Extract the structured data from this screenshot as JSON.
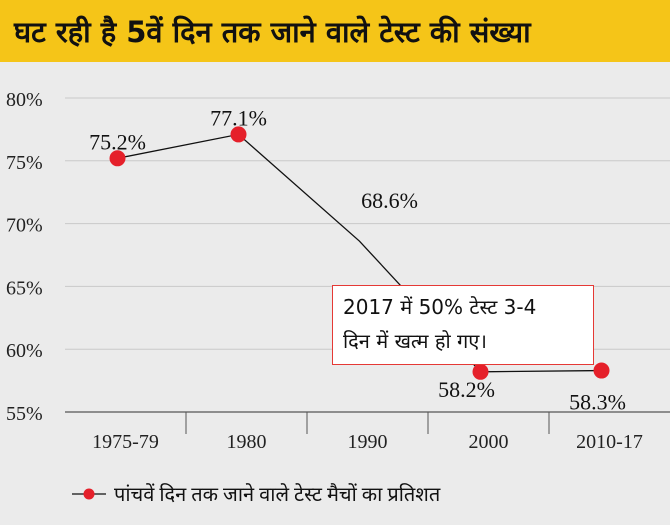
{
  "header": {
    "title": "घट रही है 5वें दिन तक जाने वाले टेस्ट की संख्या"
  },
  "callout": {
    "line1": "2017 में 50% टेस्ट 3-4",
    "line2": "दिन में खत्म हो गए।"
  },
  "colors": {
    "title_bg": "#f5c518",
    "marker": "#e5202a",
    "line": "#111111",
    "callout_border": "#e53935"
  },
  "chart_data": {
    "type": "line",
    "categories": [
      "1975-79",
      "1980",
      "1990",
      "2000",
      "2010-17"
    ],
    "series": [
      {
        "name": "पांचवें दिन तक जाने वाले टेस्ट मैचों का प्रतिशत",
        "values": [
          75.2,
          77.1,
          68.6,
          58.2,
          58.3
        ],
        "labels": [
          "75.2%",
          "77.1%",
          "68.6%",
          "58.2%",
          "58.3%"
        ],
        "markers": [
          true,
          true,
          false,
          true,
          true
        ]
      }
    ],
    "yticks": [
      "55%",
      "60%",
      "65%",
      "70%",
      "75%",
      "80%"
    ],
    "ytick_values": [
      55,
      60,
      65,
      70,
      75,
      80
    ],
    "ylim": [
      55,
      80
    ],
    "grid": true,
    "legend": "bottom"
  }
}
